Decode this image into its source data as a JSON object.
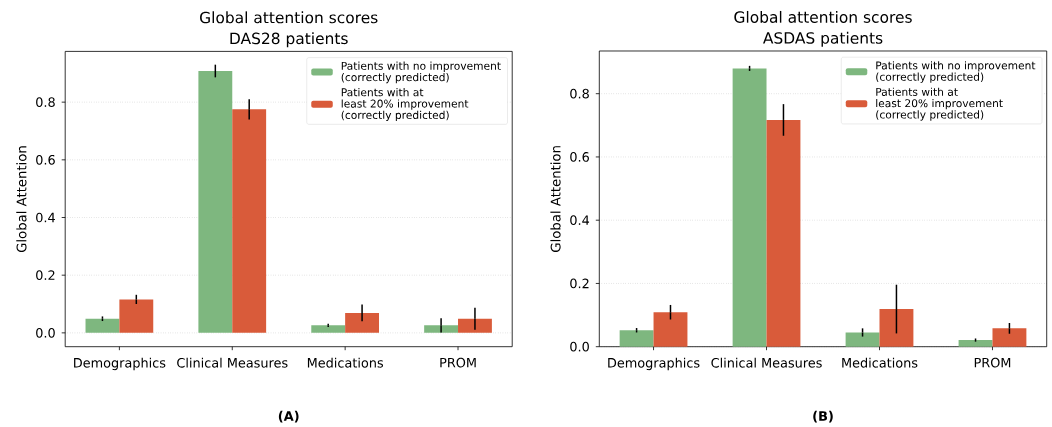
{
  "chart_data": [
    {
      "type": "bar",
      "title": "Global attention scores\nDAS28 patients",
      "ylabel": "Global Attention",
      "categories": [
        "Demographics",
        "Clinical Measures",
        "Medications",
        "PROM"
      ],
      "series": [
        {
          "name": "Patients with no improvement\n(correctly predicted)",
          "color": "#7eb77f",
          "values": [
            0.049,
            0.908,
            0.026,
            0.026
          ],
          "errors": [
            0.008,
            0.022,
            0.006,
            0.025
          ]
        },
        {
          "name": "Patients with at\nleast 20% improvement\n(correctly predicted)",
          "color": "#d95b3a",
          "values": [
            0.116,
            0.775,
            0.069,
            0.049
          ],
          "errors": [
            0.016,
            0.035,
            0.029,
            0.038
          ]
        }
      ],
      "ylim": [
        -0.048,
        0.976
      ],
      "yticks": [
        {
          "value": 0,
          "label": "0.0"
        },
        0.2,
        0.4,
        0.6,
        0.8
      ],
      "grid": "y",
      "legend": "top right",
      "annotations": [
        "(A)"
      ]
    },
    {
      "type": "bar",
      "title": "Global attention scores\nASDAS patients",
      "ylabel": "Global Attention",
      "categories": [
        "Demographics",
        "Clinical Measures",
        "Medications",
        "PROM"
      ],
      "series": [
        {
          "name": "Patients with no improvement\n(correctly predicted)",
          "color": "#7eb77f",
          "values": [
            0.052,
            0.88,
            0.045,
            0.021
          ],
          "errors": [
            0.007,
            0.008,
            0.013,
            0.005
          ]
        },
        {
          "name": "Patients with at\nleast 20% improvement\n(correctly predicted)",
          "color": "#d95b3a",
          "values": [
            0.109,
            0.717,
            0.119,
            0.058
          ],
          "errors": [
            0.023,
            0.05,
            0.077,
            0.017
          ]
        }
      ],
      "ylim": [
        0,
        0.935
      ],
      "yticks": [
        {
          "value": 0,
          "label": "0.0"
        },
        0.2,
        0.4,
        0.6,
        0.8
      ],
      "grid": "y",
      "legend": "top right",
      "annotations": [
        "(B)"
      ]
    }
  ]
}
